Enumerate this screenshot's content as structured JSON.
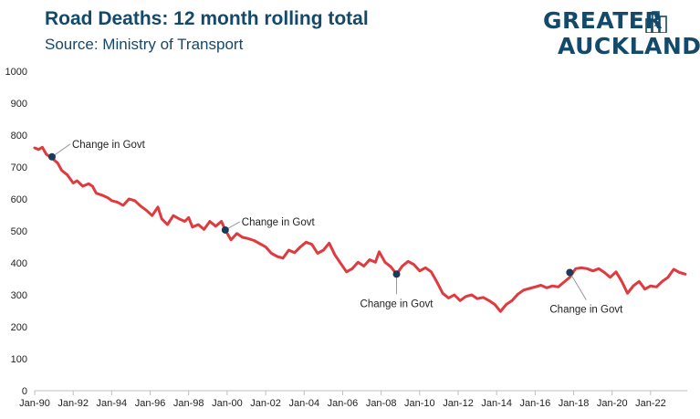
{
  "header": {
    "title": "Road Deaths: 12 month rolling total",
    "subtitle": "Source: Ministry of Transport"
  },
  "logo": {
    "line1": "GREATER",
    "line2": "AUCKLAND",
    "color": "#134a6b",
    "icon": "city-buildings-icon"
  },
  "chart_data": {
    "type": "line",
    "title": "Road Deaths: 12 month rolling total",
    "subtitle": "Source: Ministry of Transport",
    "xlabel": "",
    "ylabel": "",
    "ylim": [
      0,
      1000
    ],
    "yticks": [
      0,
      100,
      200,
      300,
      400,
      500,
      600,
      700,
      800,
      900,
      1000
    ],
    "xlim": [
      1990.0,
      2023.9
    ],
    "xticks": [
      {
        "label": "Jan-90",
        "x": 1990
      },
      {
        "label": "Jan-92",
        "x": 1992
      },
      {
        "label": "Jan-94",
        "x": 1994
      },
      {
        "label": "Jan-96",
        "x": 1996
      },
      {
        "label": "Jan-98",
        "x": 1998
      },
      {
        "label": "Jan-00",
        "x": 2000
      },
      {
        "label": "Jan-02",
        "x": 2002
      },
      {
        "label": "Jan-04",
        "x": 2004
      },
      {
        "label": "Jan-06",
        "x": 2006
      },
      {
        "label": "Jan-08",
        "x": 2008
      },
      {
        "label": "Jan-10",
        "x": 2010
      },
      {
        "label": "Jan-12",
        "x": 2012
      },
      {
        "label": "Jan-14",
        "x": 2014
      },
      {
        "label": "Jan-16",
        "x": 2016
      },
      {
        "label": "Jan-18",
        "x": 2018
      },
      {
        "label": "Jan-20",
        "x": 2020
      },
      {
        "label": "Jan-22",
        "x": 2022
      }
    ],
    "grid": false,
    "line_color": "#e0393e",
    "series": [
      {
        "x": [
          1990.0,
          1990.2,
          1990.4,
          1990.6,
          1990.9,
          1991.2,
          1991.4,
          1991.7,
          1992.0,
          1992.2,
          1992.5,
          1992.8,
          1993.0,
          1993.2,
          1993.5,
          1993.8,
          1994.0,
          1994.3,
          1994.6,
          1994.9,
          1995.2,
          1995.5,
          1995.8,
          1996.1,
          1996.4,
          1996.6,
          1996.9,
          1997.2,
          1997.5,
          1997.8,
          1998.0,
          1998.2,
          1998.5,
          1998.8,
          1999.1,
          1999.4,
          1999.7,
          1999.9,
          2000.2,
          2000.5,
          2000.8,
          2001.1,
          2001.4,
          2001.7,
          2002.0,
          2002.3,
          2002.6,
          2002.9,
          2003.2,
          2003.5,
          2003.8,
          2004.1,
          2004.4,
          2004.7,
          2005.0,
          2005.3,
          2005.6,
          2005.9,
          2006.2,
          2006.5,
          2006.8,
          2007.1,
          2007.4,
          2007.7,
          2007.9,
          2008.2,
          2008.5,
          2008.8,
          2009.1,
          2009.4,
          2009.7,
          2010.0,
          2010.3,
          2010.6,
          2010.9,
          2011.2,
          2011.5,
          2011.8,
          2012.1,
          2012.4,
          2012.7,
          2013.0,
          2013.3,
          2013.6,
          2013.9,
          2014.2,
          2014.5,
          2014.8,
          2015.1,
          2015.4,
          2015.7,
          2016.0,
          2016.3,
          2016.6,
          2016.9,
          2017.2,
          2017.5,
          2017.8,
          2018.1,
          2018.4,
          2018.7,
          2019.0,
          2019.3,
          2019.6,
          2019.9,
          2020.2,
          2020.5,
          2020.8,
          2021.1,
          2021.4,
          2021.7,
          2022.0,
          2022.3,
          2022.6,
          2022.9,
          2023.2,
          2023.5,
          2023.8
        ],
        "y": [
          760,
          755,
          762,
          740,
          728,
          712,
          690,
          675,
          650,
          657,
          640,
          648,
          640,
          618,
          612,
          604,
          595,
          590,
          580,
          600,
          595,
          578,
          565,
          548,
          575,
          538,
          520,
          548,
          538,
          530,
          542,
          512,
          520,
          505,
          530,
          515,
          530,
          503,
          472,
          492,
          480,
          476,
          470,
          460,
          450,
          430,
          420,
          415,
          440,
          432,
          450,
          465,
          458,
          430,
          440,
          462,
          425,
          398,
          372,
          382,
          402,
          390,
          410,
          402,
          435,
          402,
          388,
          365,
          390,
          405,
          395,
          375,
          385,
          372,
          340,
          305,
          290,
          300,
          282,
          295,
          300,
          288,
          292,
          282,
          270,
          248,
          270,
          282,
          302,
          315,
          320,
          325,
          330,
          322,
          328,
          325,
          340,
          355,
          382,
          385,
          382,
          375,
          382,
          370,
          355,
          372,
          342,
          305,
          328,
          342,
          318,
          328,
          325,
          342,
          355,
          380,
          370,
          365
        ]
      }
    ],
    "annotations": [
      {
        "label": "Change in Govt",
        "x": 1990.9,
        "y": 732
      },
      {
        "label": "Change in Govt",
        "x": 1999.9,
        "y": 503
      },
      {
        "label": "Change in Govt",
        "x": 2008.8,
        "y": 365
      },
      {
        "label": "Change in Govt",
        "x": 2017.8,
        "y": 370
      }
    ]
  }
}
